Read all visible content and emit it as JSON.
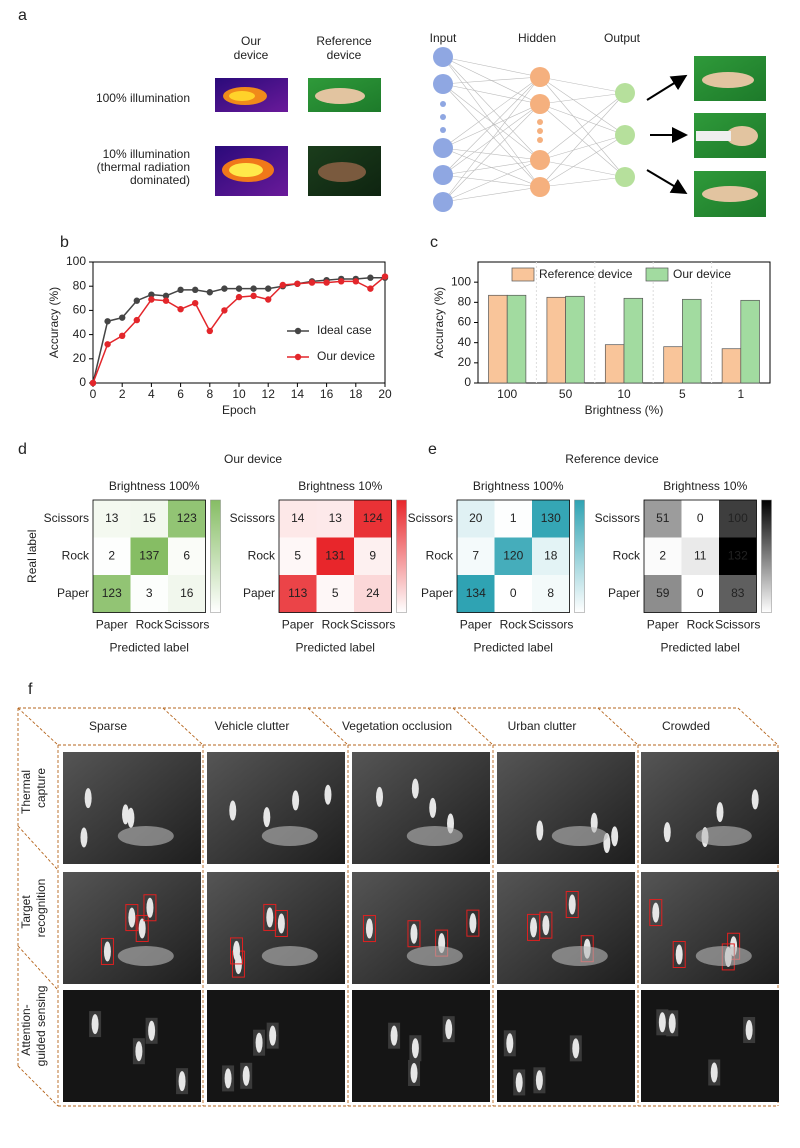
{
  "panel_labels": [
    "a",
    "b",
    "c",
    "d",
    "e",
    "f"
  ],
  "panel_a": {
    "columns": [
      [
        "Our",
        "device"
      ],
      [
        "Reference",
        "device"
      ]
    ],
    "rows": [
      [
        "100% illumination"
      ],
      [
        "10% illumination",
        "(thermal radiation",
        "dominated)"
      ]
    ],
    "layers": [
      "Input",
      "Hidden",
      "Output"
    ]
  },
  "chart_data": [
    {
      "type": "line",
      "xlabel": "Epoch",
      "ylabel": "Accuracy (%)",
      "x": [
        0,
        1,
        2,
        3,
        4,
        5,
        6,
        7,
        8,
        9,
        10,
        11,
        12,
        13,
        14,
        15,
        16,
        17,
        18,
        19,
        20
      ],
      "series": [
        {
          "name": "Ideal case",
          "color": "#454545",
          "values": [
            0,
            51,
            54,
            68,
            73,
            72,
            77,
            77,
            75,
            78,
            78,
            78,
            78,
            80,
            82,
            84,
            85,
            86,
            86,
            87,
            87
          ]
        },
        {
          "name": "Our device",
          "color": "#e3262b",
          "values": [
            0,
            32,
            39,
            52,
            69,
            68,
            61,
            66,
            43,
            60,
            71,
            72,
            69,
            81,
            82,
            83,
            83,
            84,
            84,
            78,
            88
          ]
        }
      ],
      "xlim": [
        0,
        20
      ],
      "ylim": [
        0,
        100
      ],
      "xticks": [
        0,
        2,
        4,
        6,
        8,
        10,
        12,
        14,
        16,
        18,
        20
      ],
      "yticks": [
        0,
        20,
        40,
        60,
        80,
        100
      ],
      "legend": "right"
    },
    {
      "type": "bar",
      "xlabel": "Brightness (%)",
      "ylabel": "Accuracy (%)",
      "categories": [
        "100",
        "50",
        "10",
        "5",
        "1"
      ],
      "series": [
        {
          "name": "Reference device",
          "color": "#f9c59a",
          "values": [
            87,
            85,
            38,
            36,
            34
          ]
        },
        {
          "name": "Our device",
          "color": "#a2dba0",
          "values": [
            87,
            86,
            84,
            83,
            82
          ]
        }
      ],
      "ylim": [
        0,
        120
      ],
      "yticks": [
        0,
        20,
        40,
        60,
        80,
        100
      ],
      "legend": "top"
    },
    {
      "type": "heatmap",
      "title": "Brightness 100%",
      "ylabel": "Real label",
      "xlabel": "Predicted label",
      "x_categories": [
        "Paper",
        "Rock",
        "Scissors"
      ],
      "y_categories": [
        "Scissors",
        "Rock",
        "Paper"
      ],
      "values": [
        [
          13,
          15,
          123
        ],
        [
          2,
          137,
          6
        ],
        [
          123,
          3,
          16
        ]
      ],
      "color": "#86bd64"
    },
    {
      "type": "heatmap",
      "title": "Brightness 10%",
      "xlabel": "Predicted label",
      "x_categories": [
        "Paper",
        "Rock",
        "Scissors"
      ],
      "y_categories": [
        "Scissors",
        "Rock",
        "Paper"
      ],
      "values": [
        [
          14,
          13,
          124
        ],
        [
          5,
          131,
          9
        ],
        [
          113,
          5,
          24
        ]
      ],
      "color": "#e8262b"
    },
    {
      "type": "heatmap",
      "title": "Brightness 100%",
      "xlabel": "Predicted label",
      "x_categories": [
        "Paper",
        "Rock",
        "Scissors"
      ],
      "y_categories": [
        "Scissors",
        "Rock",
        "Paper"
      ],
      "values": [
        [
          20,
          1,
          130
        ],
        [
          7,
          120,
          18
        ],
        [
          134,
          0,
          8
        ]
      ],
      "color": "#2fa3b3"
    },
    {
      "type": "heatmap",
      "title": "Brightness 10%",
      "xlabel": "Predicted label",
      "x_categories": [
        "Paper",
        "Rock",
        "Scissors"
      ],
      "y_categories": [
        "Scissors",
        "Rock",
        "Paper"
      ],
      "values": [
        [
          51,
          0,
          100
        ],
        [
          2,
          11,
          132
        ],
        [
          59,
          0,
          83
        ]
      ],
      "color": "#000000"
    }
  ],
  "panel_d_title": "Our device",
  "panel_e_title": "Reference device",
  "panel_f": {
    "columns": [
      "Sparse",
      "Vehicle clutter",
      "Vegetation occlusion",
      "Urban clutter",
      "Crowded"
    ],
    "rows": [
      [
        "Thermal",
        "capture"
      ],
      [
        "Target",
        "recognition"
      ],
      [
        "Attention-",
        "guided sensing"
      ]
    ]
  }
}
